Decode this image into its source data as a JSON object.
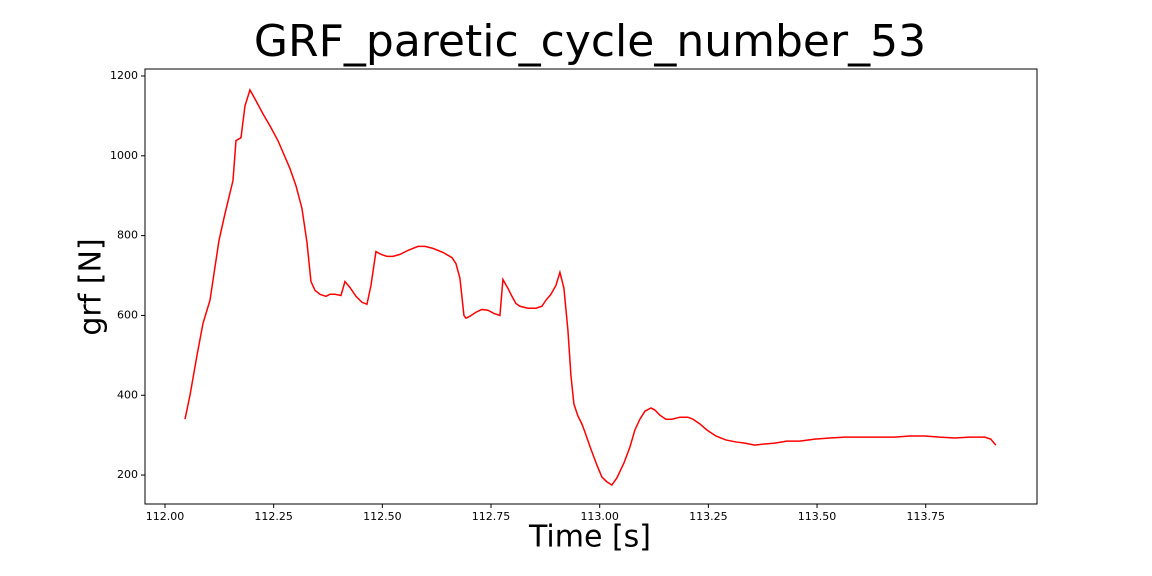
{
  "chart_data": {
    "type": "line",
    "title": "GRF_paretic_cycle_number_53",
    "xlabel": "Time [s]",
    "ylabel": "grf [N]",
    "color": "#ff0000",
    "x": [
      112.046,
      112.0575,
      112.0736,
      112.0874,
      112.1035,
      112.1242,
      112.138,
      112.1564,
      112.1633,
      112.1748,
      112.184,
      112.1955,
      112.2093,
      112.2254,
      112.2415,
      112.2599,
      112.2875,
      112.3013,
      112.3151,
      112.3266,
      112.3358,
      112.345,
      112.3565,
      112.3703,
      112.3795,
      112.391,
      112.4048,
      112.414,
      112.4255,
      112.4393,
      112.4531,
      112.4646,
      112.4738,
      112.4853,
      112.4968,
      112.5106,
      112.5244,
      112.5405,
      112.5589,
      112.5819,
      112.598,
      112.6164,
      112.6394,
      112.6601,
      112.6693,
      112.6785,
      112.6877,
      112.6923,
      112.7015,
      112.7153,
      112.7291,
      112.7429,
      112.7567,
      112.7705,
      112.7774,
      112.7889,
      112.7981,
      112.8073,
      112.8165,
      112.8349,
      112.8533,
      112.8671,
      112.8763,
      112.8878,
      112.8993,
      112.9085,
      112.9177,
      112.9269,
      112.9338,
      112.9407,
      112.9499,
      112.9591,
      112.966,
      112.9798,
      112.9936,
      113.0051,
      113.0166,
      113.0281,
      113.0396,
      113.0557,
      113.0695,
      113.081,
      113.0925,
      113.104,
      113.1178,
      113.127,
      113.1385,
      113.1523,
      113.166,
      113.1845,
      113.2029,
      113.2144,
      113.2305,
      113.2466,
      113.2672,
      113.2902,
      113.3132,
      113.3339,
      113.3569,
      113.38,
      113.403,
      113.4305,
      113.4604,
      113.4949,
      113.5294,
      113.5639,
      113.5984,
      113.6329,
      113.6789,
      113.7134,
      113.7479,
      113.7824,
      113.8169,
      113.8514,
      113.8859,
      113.8997,
      113.9112
    ],
    "values": [
      340,
      400,
      500,
      580,
      638,
      788,
      855,
      938,
      1038,
      1045,
      1125,
      1165,
      1138,
      1105,
      1075,
      1038,
      968,
      925,
      868,
      783,
      685,
      663,
      653,
      648,
      653,
      653,
      650,
      685,
      670,
      648,
      633,
      628,
      675,
      760,
      753,
      748,
      748,
      753,
      763,
      773,
      773,
      768,
      758,
      745,
      730,
      693,
      600,
      593,
      598,
      608,
      615,
      613,
      605,
      600,
      690,
      668,
      648,
      630,
      623,
      618,
      618,
      623,
      638,
      653,
      675,
      708,
      668,
      563,
      450,
      378,
      348,
      328,
      308,
      265,
      225,
      195,
      183,
      175,
      193,
      230,
      270,
      313,
      340,
      360,
      368,
      363,
      350,
      340,
      340,
      345,
      345,
      340,
      328,
      313,
      298,
      288,
      283,
      280,
      275,
      278,
      280,
      285,
      285,
      290,
      293,
      295,
      295,
      295,
      295,
      298,
      298,
      295,
      293,
      295,
      295,
      290,
      275
    ],
    "xlim": [
      111.954,
      114.006
    ],
    "ylim": [
      127.5,
      1217.5
    ],
    "xticks": [
      {
        "value": 112,
        "label": "112.00"
      },
      {
        "value": 112.25,
        "label": "112.25"
      },
      {
        "value": 112.5,
        "label": "112.50"
      },
      {
        "value": 112.75,
        "label": "112.75"
      },
      {
        "value": 113,
        "label": "113.00"
      },
      {
        "value": 113.25,
        "label": "113.25"
      },
      {
        "value": 113.5,
        "label": "113.50"
      },
      {
        "value": 113.75,
        "label": "113.75"
      }
    ],
    "yticks": [
      200,
      400,
      600,
      800,
      1000,
      1200
    ]
  }
}
